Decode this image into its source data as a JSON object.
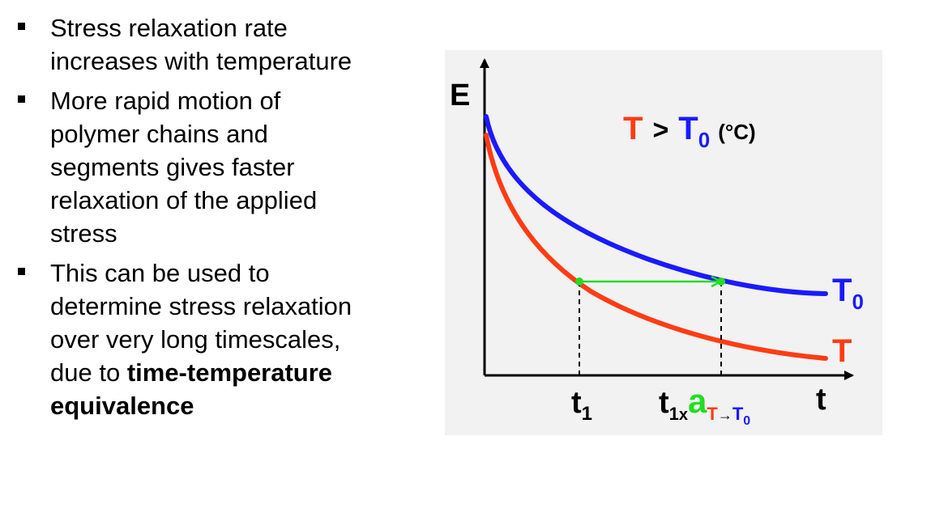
{
  "bullets": [
    {
      "text": "Stress relaxation rate increases with temperature"
    },
    {
      "text": "More rapid motion of polymer chains and segments gives faster relaxation of the applied stress"
    },
    {
      "text_before_bold": "This can be used to determine stress relaxation over very long timescales, due to ",
      "bold_text": "time-temperature equivalence"
    }
  ],
  "diagram": {
    "y_axis_label": "E",
    "x_axis_label": "t",
    "condition": {
      "t": "T",
      "gt": ">",
      "t0_base": "T",
      "t0_sub": "0",
      "unit": "(°C)"
    },
    "curve_labels": {
      "upper_base": "T",
      "upper_sub": "0",
      "lower": "T"
    },
    "tick_t1": {
      "base": "t",
      "sub": "1"
    },
    "tick_shift": {
      "base": "t",
      "sub1": "1",
      "times": "x",
      "a": "a",
      "sub_T": "T",
      "arrow": "→",
      "sub_T0": "T",
      "sub_0": "0"
    },
    "colors": {
      "T": "#ff3c14",
      "T0": "#1a1aff",
      "shift": "#22dd22",
      "axis": "#000000"
    }
  }
}
